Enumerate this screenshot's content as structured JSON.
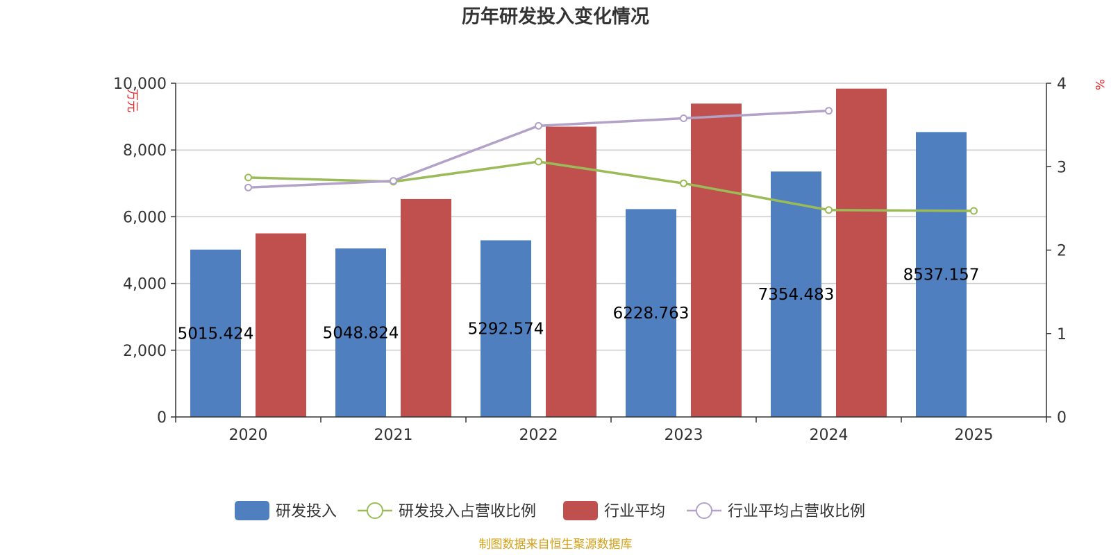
{
  "chart_data": {
    "type": "bar",
    "title": "历年研发投入变化情况",
    "categories": [
      "2020",
      "2021",
      "2022",
      "2023",
      "2024",
      "2025"
    ],
    "left_axis": {
      "unit": "万元",
      "min": 0,
      "max": 10000,
      "ticks": [
        "0",
        "2,000",
        "4,000",
        "6,000",
        "8,000",
        "10,000"
      ],
      "tick_values": [
        0,
        2000,
        4000,
        6000,
        8000,
        10000
      ]
    },
    "right_axis": {
      "unit": "%",
      "min": 0,
      "max": 4,
      "ticks": [
        "0",
        "1",
        "2",
        "3",
        "4"
      ],
      "tick_values": [
        0,
        1,
        2,
        3,
        4
      ]
    },
    "grid": true,
    "series": [
      {
        "name": "研发投入",
        "kind": "bar",
        "axis": "left",
        "color": "#4f7fbe",
        "values": [
          5015.424,
          5048.824,
          5292.574,
          6228.763,
          7354.483,
          8537.157
        ],
        "labels": [
          "5015.424",
          "5048.824",
          "5292.574",
          "6228.763",
          "7354.483",
          "8537.157"
        ]
      },
      {
        "name": "行业平均",
        "kind": "bar",
        "axis": "left",
        "color": "#c0504d",
        "values": [
          5500,
          6530,
          8700,
          9390,
          9840,
          null
        ]
      },
      {
        "name": "研发投入占营收比例",
        "kind": "line",
        "axis": "right",
        "color": "#9bbb59",
        "values": [
          2.87,
          2.82,
          3.06,
          2.8,
          2.48,
          2.47
        ]
      },
      {
        "name": "行业平均占营收比例",
        "kind": "line",
        "axis": "right",
        "color": "#b3a2c7",
        "values": [
          2.75,
          2.83,
          3.49,
          3.58,
          3.67,
          null
        ]
      }
    ],
    "legend_position": "bottom",
    "source": "制图数据来自恒生聚源数据库"
  }
}
